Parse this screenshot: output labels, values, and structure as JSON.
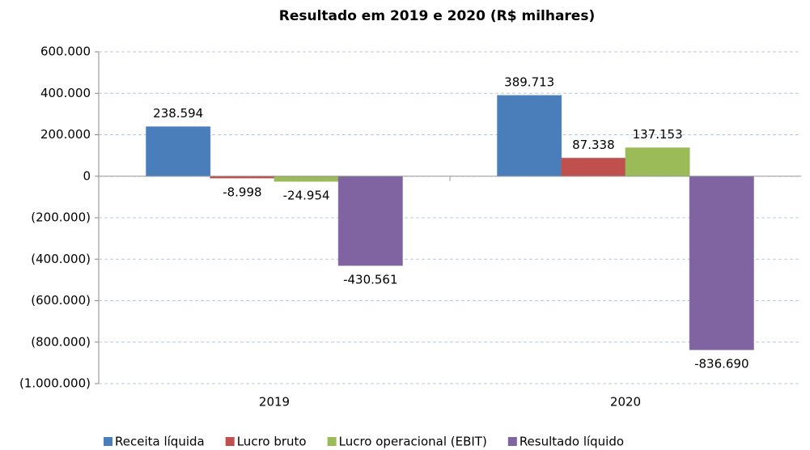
{
  "chart_data": {
    "type": "bar",
    "title": "Resultado em 2019 e 2020 (R$ milhares)",
    "categories": [
      "2019",
      "2020"
    ],
    "series": [
      {
        "name": "Receita líquida",
        "color": "#4a7ebb",
        "values": [
          238594,
          389713
        ],
        "value_labels": [
          "238.594",
          "389.713"
        ]
      },
      {
        "name": "Lucro bruto",
        "color": "#c0504d",
        "values": [
          -8998,
          87338
        ],
        "value_labels": [
          "-8.998",
          "87.338"
        ]
      },
      {
        "name": "Lucro operacional (EBIT)",
        "color": "#9bbb59",
        "values": [
          -24954,
          137153
        ],
        "value_labels": [
          "-24.954",
          "137.153"
        ]
      },
      {
        "name": "Resultado líquido",
        "color": "#8064a2",
        "values": [
          -430561,
          -836690
        ],
        "value_labels": [
          "-430.561",
          "-836.690"
        ]
      }
    ],
    "ylim": [
      -1000000,
      600000
    ],
    "yticks": [
      {
        "value": 600000,
        "label": "600.000"
      },
      {
        "value": 400000,
        "label": "400.000"
      },
      {
        "value": 200000,
        "label": "200.000"
      },
      0,
      {
        "value": -200000,
        "label": "(200.000)"
      },
      {
        "value": -400000,
        "label": "(400.000)"
      },
      {
        "value": -600000,
        "label": "(600.000)"
      },
      {
        "value": -800000,
        "label": "(800.000)"
      },
      {
        "value": -1000000,
        "label": "(1.000.000)"
      }
    ],
    "grid": true
  }
}
